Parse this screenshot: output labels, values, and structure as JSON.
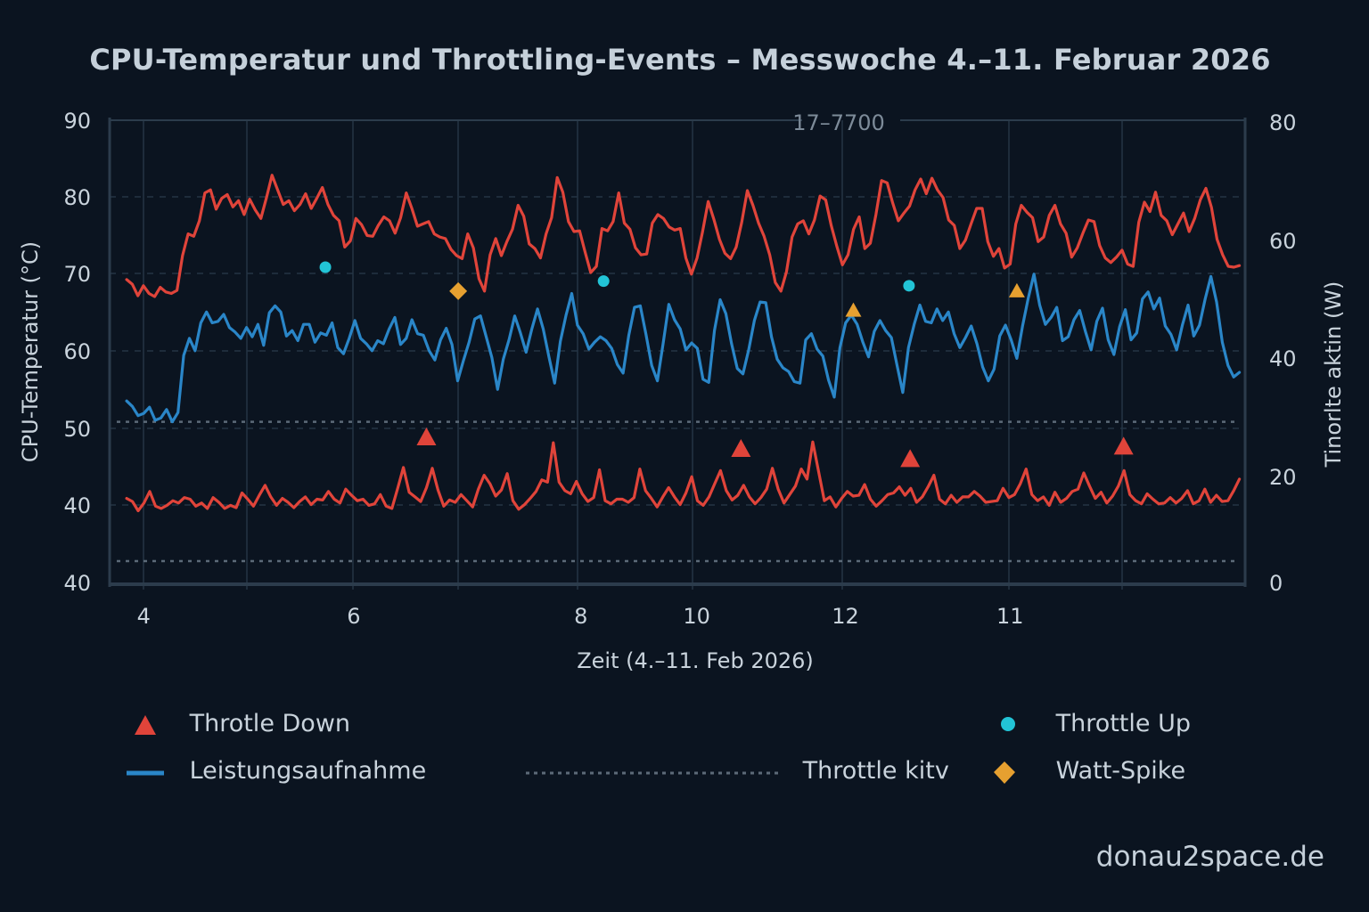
{
  "title": "CPU-Temperatur und Throttling-Events – Messwoche 4.–11. Februar 2026",
  "watermark": "donau2space.de",
  "colors": {
    "background": "#0b1420",
    "temp_line": "#e0443a",
    "power_line": "#2a86c8",
    "throttle_down": "#e0443a",
    "throttle_up": "#22c4d6",
    "watt_spike": "#e6a030",
    "grid": "#243444",
    "axis": "#2c3c4c",
    "dotted": "#5c6a78"
  },
  "legend": {
    "items": [
      {
        "label": "Throtle Down",
        "marker": "triangle",
        "color": "#e0443a"
      },
      {
        "label": "Throttle Up",
        "marker": "circle",
        "color": "#22c4d6"
      },
      {
        "label": "Leistungsaufnahme",
        "marker": "line",
        "color": "#2a86c8"
      },
      {
        "label": "Throttle ​kitv",
        "marker": "dotted-line",
        "color": "#5c6a78"
      },
      {
        "label": "Watt-Spike",
        "marker": "diamond",
        "color": "#e6a030"
      }
    ]
  },
  "chart_data": {
    "type": "line",
    "title": "CPU-Temperatur und Throttling-Events – Messwoche 4.–11. Februar 2026",
    "annotation": "17–7700",
    "xlabel": "Zeit (4.–11. Feb 2026)",
    "ylabel": "CPU-Temperatur (°C)",
    "ylabel_right": "Tinorlte aktin (W)",
    "x_ticks": [
      {
        "label": "4",
        "x": 0.03
      },
      {
        "label": "6",
        "x": 0.215
      },
      {
        "label": "8",
        "x": 0.415
      },
      {
        "label": "10",
        "x": 0.517
      },
      {
        "label": "12",
        "x": 0.648
      },
      {
        "label": "11",
        "x": 0.793
      }
    ],
    "y_left_ticks": [
      "90",
      "80",
      "70",
      "60",
      "50",
      "40",
      "40"
    ],
    "y_left_range": [
      30,
      90
    ],
    "y_right_ticks": [
      "80",
      "60",
      "40",
      "20",
      "0"
    ],
    "y_right_range": [
      0,
      80
    ],
    "grid": true,
    "legend_position": "bottom",
    "hlines": [
      {
        "name": "throttle-active-upper",
        "value": 51.0,
        "style": "dotted"
      },
      {
        "name": "throttle-active-lower",
        "value": 33.0,
        "style": "dotted"
      }
    ],
    "series": [
      {
        "name": "CPU-Temperatur (oben)",
        "color": "#e0443a",
        "x_range": [
          0.015,
          0.995
        ],
        "values": [
          69.4,
          68.8,
          67.3,
          68.6,
          67.6,
          67.2,
          68.4,
          67.8,
          67.6,
          68.0,
          72.5,
          75.3,
          75.0,
          77.0,
          80.6,
          81.0,
          78.5,
          79.9,
          80.4,
          78.8,
          79.6,
          77.8,
          79.8,
          78.4,
          77.3,
          80.0,
          82.9,
          81.0,
          79.1,
          79.6,
          78.3,
          79.1,
          80.5,
          78.6,
          79.9,
          81.3,
          79.1,
          77.7,
          77.0,
          73.6,
          74.4,
          77.3,
          76.5,
          75.1,
          75.0,
          76.4,
          77.5,
          77.0,
          75.4,
          77.4,
          80.6,
          78.6,
          76.3,
          76.6,
          76.9,
          75.3,
          74.9,
          74.7,
          73.3,
          72.5,
          72.1,
          75.3,
          73.5,
          69.5,
          67.9,
          72.6,
          74.7,
          72.5,
          74.3,
          75.9,
          79.0,
          77.6,
          74.0,
          73.4,
          72.2,
          75.3,
          77.4,
          82.6,
          80.7,
          76.9,
          75.6,
          75.7,
          72.9,
          70.3,
          71.1,
          76.0,
          75.7,
          76.9,
          80.6,
          76.7,
          75.9,
          73.5,
          72.6,
          72.7,
          76.7,
          77.8,
          77.3,
          76.2,
          75.8,
          76.0,
          72.2,
          70.1,
          72.2,
          75.6,
          79.5,
          77.2,
          74.6,
          72.8,
          72.1,
          73.6,
          76.8,
          80.9,
          79.0,
          76.7,
          75.0,
          72.6,
          69.0,
          67.9,
          70.4,
          74.9,
          76.6,
          77.0,
          75.3,
          77.1,
          80.2,
          79.7,
          76.4,
          73.7,
          71.3,
          72.6,
          75.9,
          77.5,
          73.4,
          74.1,
          77.8,
          82.2,
          81.9,
          79.3,
          77.0,
          78.0,
          78.9,
          81.0,
          82.4,
          80.5,
          82.5,
          81.0,
          80.0,
          77.1,
          76.4,
          73.4,
          74.5,
          76.6,
          78.6,
          78.6,
          74.3,
          72.4,
          73.4,
          70.9,
          71.4,
          76.6,
          79.0,
          78.1,
          77.4,
          74.3,
          74.9,
          77.7,
          79.0,
          76.6,
          75.4,
          72.3,
          73.5,
          75.4,
          77.1,
          76.9,
          73.8,
          72.2,
          71.6,
          72.3,
          73.2,
          71.4,
          71.1,
          76.8,
          79.4,
          78.2,
          80.7,
          77.7,
          77.0,
          75.2,
          76.6,
          78.0,
          75.6,
          77.3,
          79.7,
          81.2,
          78.7,
          74.6,
          72.6,
          71.1,
          71.0,
          71.2
        ]
      },
      {
        "name": "Leistungsaufnahme",
        "color": "#2a86c8",
        "x_range": [
          0.015,
          0.995
        ],
        "values": [
          53.7,
          53.0,
          51.8,
          52.1,
          52.9,
          51.2,
          51.5,
          52.6,
          51.0,
          52.2,
          59.6,
          61.8,
          60.2,
          63.8,
          65.2,
          63.8,
          64.0,
          64.9,
          63.2,
          62.6,
          61.8,
          63.2,
          62.0,
          63.6,
          60.9,
          65.1,
          66.0,
          65.2,
          62.1,
          62.8,
          61.5,
          63.6,
          63.6,
          61.3,
          62.5,
          62.2,
          63.8,
          60.6,
          59.8,
          61.8,
          64.1,
          61.8,
          61.1,
          60.2,
          61.5,
          61.1,
          63.0,
          64.5,
          61.0,
          61.8,
          64.2,
          62.4,
          62.2,
          60.2,
          59.0,
          61.6,
          63.1,
          61.0,
          56.3,
          58.9,
          61.3,
          64.3,
          64.7,
          62.0,
          59.3,
          55.2,
          59.1,
          61.6,
          64.7,
          62.5,
          60.0,
          63.0,
          65.6,
          63.0,
          59.4,
          56.0,
          61.4,
          64.8,
          67.6,
          63.5,
          62.4,
          60.4,
          61.3,
          62.0,
          61.5,
          60.5,
          58.4,
          57.3,
          62.2,
          65.8,
          66.0,
          62.3,
          58.3,
          56.3,
          61.1,
          66.2,
          64.2,
          63.0,
          60.3,
          61.2,
          60.5,
          56.5,
          56.1,
          62.8,
          66.8,
          65.0,
          61.1,
          57.9,
          57.2,
          60.3,
          64.1,
          66.5,
          66.4,
          62.0,
          59.1,
          58.0,
          57.5,
          56.2,
          56.0,
          61.6,
          62.4,
          60.4,
          59.5,
          56.4,
          54.2,
          60.6,
          63.8,
          64.8,
          63.6,
          61.3,
          59.4,
          62.7,
          64.1,
          62.8,
          61.9,
          58.3,
          54.8,
          60.6,
          63.6,
          66.1,
          64.0,
          63.8,
          65.6,
          64.1,
          65.2,
          62.4,
          60.6,
          61.9,
          63.4,
          61.1,
          58.1,
          56.3,
          57.8,
          62.1,
          63.5,
          61.6,
          59.2,
          63.4,
          67.0,
          70.1,
          66.1,
          63.6,
          64.5,
          65.8,
          61.5,
          62.0,
          64.2,
          65.4,
          62.7,
          60.3,
          64.0,
          65.7,
          61.6,
          59.7,
          63.3,
          65.5,
          61.6,
          62.5,
          66.9,
          67.8,
          65.6,
          67.0,
          63.4,
          62.3,
          60.3,
          63.5,
          66.1,
          62.1,
          63.5,
          66.9,
          69.8,
          66.5,
          61.3,
          58.3,
          56.8,
          57.4
        ]
      },
      {
        "name": "CPU-Temperatur (unten)",
        "color": "#e0443a",
        "x_range": [
          0.015,
          0.995
        ],
        "values": [
          41.1,
          40.7,
          39.5,
          40.5,
          42.0,
          40.1,
          39.8,
          40.2,
          40.8,
          40.5,
          41.2,
          41.0,
          40.1,
          40.5,
          39.8,
          41.2,
          40.6,
          39.8,
          40.2,
          39.9,
          41.8,
          41.0,
          40.1,
          41.5,
          42.8,
          41.3,
          40.2,
          41.1,
          40.6,
          39.9,
          40.7,
          41.3,
          40.3,
          41.0,
          40.9,
          42.0,
          41.0,
          40.5,
          42.3,
          41.5,
          40.8,
          41.0,
          40.2,
          40.4,
          41.6,
          40.1,
          39.8,
          42.4,
          45.1,
          41.9,
          41.3,
          40.7,
          42.5,
          45.0,
          42.2,
          40.1,
          40.9,
          40.6,
          41.6,
          40.8,
          40.0,
          42.3,
          44.1,
          43.0,
          41.4,
          42.2,
          44.3,
          40.8,
          39.7,
          40.3,
          41.1,
          42.0,
          43.5,
          43.2,
          48.3,
          43.2,
          42.1,
          41.7,
          43.3,
          41.7,
          40.7,
          41.2,
          44.8,
          40.8,
          40.4,
          41.0,
          41.0,
          40.6,
          41.2,
          44.9,
          42.1,
          41.1,
          40.0,
          41.3,
          42.5,
          41.3,
          40.3,
          41.8,
          43.9,
          40.8,
          40.2,
          41.3,
          43.0,
          44.7,
          42.1,
          40.9,
          41.5,
          42.8,
          41.3,
          40.4,
          41.2,
          42.3,
          45.0,
          42.3,
          40.5,
          41.6,
          42.7,
          44.9,
          43.6,
          48.4,
          44.6,
          40.8,
          41.3,
          40.0,
          41.1,
          42.0,
          41.4,
          41.5,
          42.9,
          41.0,
          40.1,
          40.8,
          41.6,
          41.8,
          42.6,
          41.5,
          42.4,
          40.6,
          41.3,
          42.6,
          44.1,
          41.0,
          40.4,
          41.5,
          40.6,
          41.3,
          41.3,
          42.0,
          41.4,
          40.6,
          40.7,
          40.8,
          42.4,
          41.2,
          41.6,
          43.0,
          44.9,
          41.6,
          40.8,
          41.3,
          40.2,
          41.9,
          40.6,
          41.1,
          42.0,
          42.3,
          44.4,
          42.7,
          41.1,
          41.9,
          40.5,
          41.4,
          42.7,
          44.7,
          41.6,
          40.8,
          40.4,
          41.7,
          41.0,
          40.4,
          40.5,
          41.2,
          40.5,
          41.1,
          42.1,
          40.4,
          40.8,
          42.3,
          40.6,
          41.5,
          40.7,
          40.8,
          42.1,
          43.6
        ]
      }
    ],
    "markers": [
      {
        "type": "throttle_down",
        "x": 0.279,
        "y": 49.0
      },
      {
        "type": "throttle_down",
        "x": 0.556,
        "y": 47.5
      },
      {
        "type": "throttle_down",
        "x": 0.705,
        "y": 46.2
      },
      {
        "type": "throttle_down",
        "x": 0.893,
        "y": 47.8
      },
      {
        "type": "throttle_up",
        "x": 0.19,
        "y": 71.0
      },
      {
        "type": "throttle_up",
        "x": 0.435,
        "y": 69.2
      },
      {
        "type": "throttle_up",
        "x": 0.704,
        "y": 68.6
      },
      {
        "type": "watt_spike",
        "shape": "diamond",
        "x": 0.307,
        "y": 67.9
      },
      {
        "type": "watt_spike",
        "shape": "triangle",
        "x": 0.655,
        "y": 65.4
      },
      {
        "type": "watt_spike",
        "shape": "triangle",
        "x": 0.799,
        "y": 67.9
      }
    ]
  }
}
